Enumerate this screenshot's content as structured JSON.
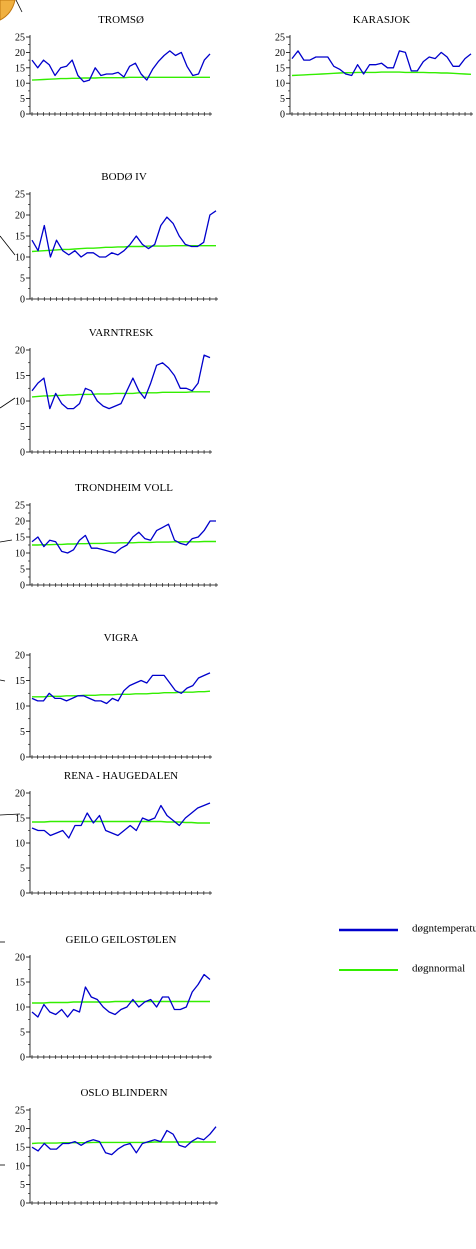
{
  "colors": {
    "temp": "#0000cc",
    "norm": "#33ee00",
    "axis": "#000000",
    "accent": "#f0b040"
  },
  "legend": [
    {
      "label": "døgntemperatur",
      "color": "#0000cc"
    },
    {
      "label": "døgnnormal",
      "color": "#33ee00"
    }
  ],
  "chart_data": [
    {
      "type": "line",
      "title": "TROMSØ",
      "ylim": [
        0,
        25
      ],
      "yticks": [
        0,
        5,
        10,
        15,
        20,
        25
      ],
      "series": [
        {
          "values": [
            17.5,
            15,
            17.5,
            16,
            12.5,
            15,
            15.5,
            17.5,
            12.5,
            10.5,
            11,
            15,
            12.5,
            13,
            13,
            13.5,
            12,
            15.5,
            16.5,
            13,
            11,
            14.5,
            17,
            19,
            20.5,
            19,
            20,
            15.5,
            12.5,
            13,
            17.5,
            19.5
          ]
        },
        {
          "values": [
            11,
            11.1,
            11.2,
            11.3,
            11.4,
            11.5,
            11.5,
            11.6,
            11.6,
            11.7,
            11.7,
            11.7,
            11.8,
            11.8,
            11.8,
            11.8,
            11.8,
            11.9,
            11.9,
            11.9,
            11.9,
            11.9,
            11.9,
            11.9,
            11.9,
            11.9,
            11.9,
            11.9,
            11.9,
            11.9,
            11.9,
            11.9
          ]
        }
      ]
    },
    {
      "type": "line",
      "title": "KARASJOK",
      "ylim": [
        0,
        25
      ],
      "yticks": [
        0,
        5,
        10,
        15,
        20,
        25
      ],
      "series": [
        {
          "values": [
            18,
            20.5,
            17.5,
            17.5,
            18.5,
            18.5,
            18.5,
            15.5,
            14.5,
            13,
            12.5,
            16,
            13,
            16,
            16,
            16.5,
            15,
            15,
            20.5,
            20,
            14,
            14,
            17,
            18.5,
            18,
            20,
            18.5,
            15.5,
            15.5,
            18,
            19.5
          ]
        },
        {
          "values": [
            12.5,
            12.6,
            12.7,
            12.8,
            12.9,
            13,
            13.1,
            13.2,
            13.3,
            13.4,
            13.4,
            13.5,
            13.5,
            13.5,
            13.5,
            13.6,
            13.6,
            13.6,
            13.6,
            13.5,
            13.5,
            13.5,
            13.5,
            13.4,
            13.4,
            13.3,
            13.3,
            13.2,
            13.1,
            13,
            12.9
          ]
        }
      ]
    },
    {
      "type": "line",
      "title": "BODØ IV",
      "ylim": [
        0,
        25
      ],
      "yticks": [
        0,
        5,
        10,
        15,
        20,
        25
      ],
      "series": [
        {
          "values": [
            14,
            11.5,
            17.5,
            10,
            14,
            11.5,
            10.5,
            11.5,
            10,
            11,
            11,
            10,
            10,
            11,
            10.5,
            11.5,
            13,
            15,
            13,
            12,
            13,
            17.5,
            19.5,
            18,
            15,
            13,
            12.5,
            12.5,
            13.5,
            20,
            21
          ]
        },
        {
          "values": [
            11.3,
            11.4,
            11.5,
            11.6,
            11.7,
            11.8,
            11.8,
            11.9,
            12,
            12.1,
            12.1,
            12.2,
            12.3,
            12.3,
            12.4,
            12.4,
            12.5,
            12.5,
            12.5,
            12.6,
            12.6,
            12.6,
            12.6,
            12.7,
            12.7,
            12.7,
            12.7,
            12.7,
            12.7,
            12.7,
            12.7
          ]
        }
      ]
    },
    {
      "type": "line",
      "title": "VARNTRESK",
      "ylim": [
        0,
        20
      ],
      "yticks": [
        0,
        5,
        10,
        15,
        20
      ],
      "series": [
        {
          "values": [
            12,
            13.5,
            14.5,
            8.5,
            11.5,
            9.5,
            8.5,
            8.5,
            9.5,
            12.5,
            12,
            10,
            9,
            8.5,
            9,
            9.5,
            12,
            14.5,
            12,
            10.5,
            13.5,
            17,
            17.5,
            16.5,
            15,
            12.5,
            12.5,
            12,
            13.5,
            19,
            18.5
          ]
        },
        {
          "values": [
            10.8,
            10.9,
            11,
            11,
            11.1,
            11.1,
            11.2,
            11.2,
            11.3,
            11.3,
            11.3,
            11.4,
            11.4,
            11.4,
            11.5,
            11.5,
            11.5,
            11.5,
            11.6,
            11.6,
            11.6,
            11.6,
            11.7,
            11.7,
            11.7,
            11.7,
            11.7,
            11.8,
            11.8,
            11.8,
            11.8
          ]
        }
      ]
    },
    {
      "type": "line",
      "title": "TRONDHEIM VOLL",
      "ylim": [
        0,
        25
      ],
      "yticks": [
        0,
        5,
        10,
        15,
        20,
        25
      ],
      "series": [
        {
          "values": [
            13.5,
            15,
            12,
            14,
            13.5,
            10.5,
            10,
            11,
            14,
            15.5,
            11.5,
            11.5,
            11,
            10.5,
            10,
            11.5,
            12.5,
            15,
            16.5,
            14.5,
            14,
            17,
            18,
            19,
            14,
            13,
            12.5,
            14.5,
            15,
            17,
            20,
            20
          ]
        },
        {
          "values": [
            12.5,
            12.5,
            12.6,
            12.6,
            12.7,
            12.7,
            12.8,
            12.8,
            12.9,
            12.9,
            13,
            13,
            13,
            13.1,
            13.1,
            13.2,
            13.2,
            13.2,
            13.3,
            13.3,
            13.3,
            13.4,
            13.4,
            13.4,
            13.5,
            13.5,
            13.5,
            13.5,
            13.5,
            13.6,
            13.6,
            13.6
          ]
        }
      ]
    },
    {
      "type": "line",
      "title": "VIGRA",
      "ylim": [
        0,
        20
      ],
      "yticks": [
        0,
        5,
        10,
        15,
        20
      ],
      "series": [
        {
          "values": [
            11.5,
            11,
            11,
            12.5,
            11.5,
            11.5,
            11,
            11.5,
            12,
            12,
            11.5,
            11,
            11,
            10.5,
            11.5,
            11,
            13,
            14,
            14.5,
            15,
            14.5,
            16,
            16,
            16,
            14.5,
            13,
            12.5,
            13.5,
            14,
            15.5,
            16,
            16.5
          ]
        },
        {
          "values": [
            11.8,
            11.8,
            11.8,
            11.9,
            11.9,
            11.9,
            12,
            12,
            12,
            12.1,
            12.1,
            12.1,
            12.2,
            12.2,
            12.2,
            12.3,
            12.3,
            12.3,
            12.4,
            12.4,
            12.4,
            12.5,
            12.5,
            12.6,
            12.6,
            12.6,
            12.7,
            12.7,
            12.7,
            12.8,
            12.8,
            12.9
          ]
        }
      ]
    },
    {
      "type": "line",
      "title": "RENA - HAUGEDALEN",
      "ylim": [
        0,
        20
      ],
      "yticks": [
        0,
        5,
        10,
        15,
        20
      ],
      "series": [
        {
          "values": [
            13,
            12.5,
            12.5,
            11.5,
            12,
            12.5,
            11,
            13.5,
            13.5,
            16,
            14,
            15.5,
            12.5,
            12,
            11.5,
            12.5,
            13.5,
            12.5,
            15,
            14.5,
            15,
            17.5,
            15.5,
            14.5,
            13.5,
            15,
            16,
            17,
            17.5,
            18
          ]
        },
        {
          "values": [
            14.2,
            14.2,
            14.2,
            14.3,
            14.3,
            14.3,
            14.3,
            14.3,
            14.3,
            14.3,
            14.3,
            14.3,
            14.3,
            14.3,
            14.3,
            14.3,
            14.3,
            14.3,
            14.3,
            14.3,
            14.3,
            14.3,
            14.2,
            14.2,
            14.2,
            14.1,
            14.1,
            14,
            14,
            14
          ]
        }
      ]
    },
    {
      "type": "line",
      "title": "GEILO GEILOSTØLEN",
      "ylim": [
        0,
        20
      ],
      "yticks": [
        0,
        5,
        10,
        15,
        20
      ],
      "series": [
        {
          "values": [
            9,
            8,
            10.5,
            9,
            8.5,
            9.5,
            8,
            9.5,
            9,
            14,
            12,
            11.5,
            10,
            9,
            8.5,
            9.5,
            10,
            11.5,
            10,
            11,
            11.5,
            10,
            12,
            12,
            9.5,
            9.5,
            10,
            13,
            14.5,
            16.5,
            15.5
          ]
        },
        {
          "values": [
            10.8,
            10.8,
            10.8,
            10.9,
            10.9,
            10.9,
            10.9,
            11,
            11,
            11,
            11,
            11,
            11,
            11,
            11.1,
            11.1,
            11.1,
            11.1,
            11.1,
            11.1,
            11.1,
            11.1,
            11.1,
            11.1,
            11.1,
            11.1,
            11.1,
            11.1,
            11.1,
            11.1,
            11.1
          ]
        }
      ]
    },
    {
      "type": "line",
      "title": "OSLO BLINDERN",
      "ylim": [
        0,
        25
      ],
      "yticks": [
        0,
        5,
        10,
        15,
        20,
        25
      ],
      "series": [
        {
          "values": [
            15,
            14,
            16,
            14.5,
            14.5,
            16,
            16,
            16.5,
            15.5,
            16.5,
            17,
            16.5,
            13.5,
            13,
            14.5,
            15.5,
            16,
            13.5,
            16,
            16.5,
            17,
            16.5,
            19.5,
            18.5,
            15.5,
            15,
            16.5,
            17.5,
            17,
            18.5,
            20.5
          ]
        },
        {
          "values": [
            16,
            16.1,
            16.1,
            16.1,
            16.1,
            16.2,
            16.2,
            16.2,
            16.2,
            16.2,
            16.3,
            16.3,
            16.3,
            16.3,
            16.3,
            16.3,
            16.3,
            16.3,
            16.3,
            16.3,
            16.4,
            16.4,
            16.4,
            16.4,
            16.4,
            16.4,
            16.4,
            16.4,
            16.4,
            16.4,
            16.4
          ]
        }
      ]
    }
  ]
}
